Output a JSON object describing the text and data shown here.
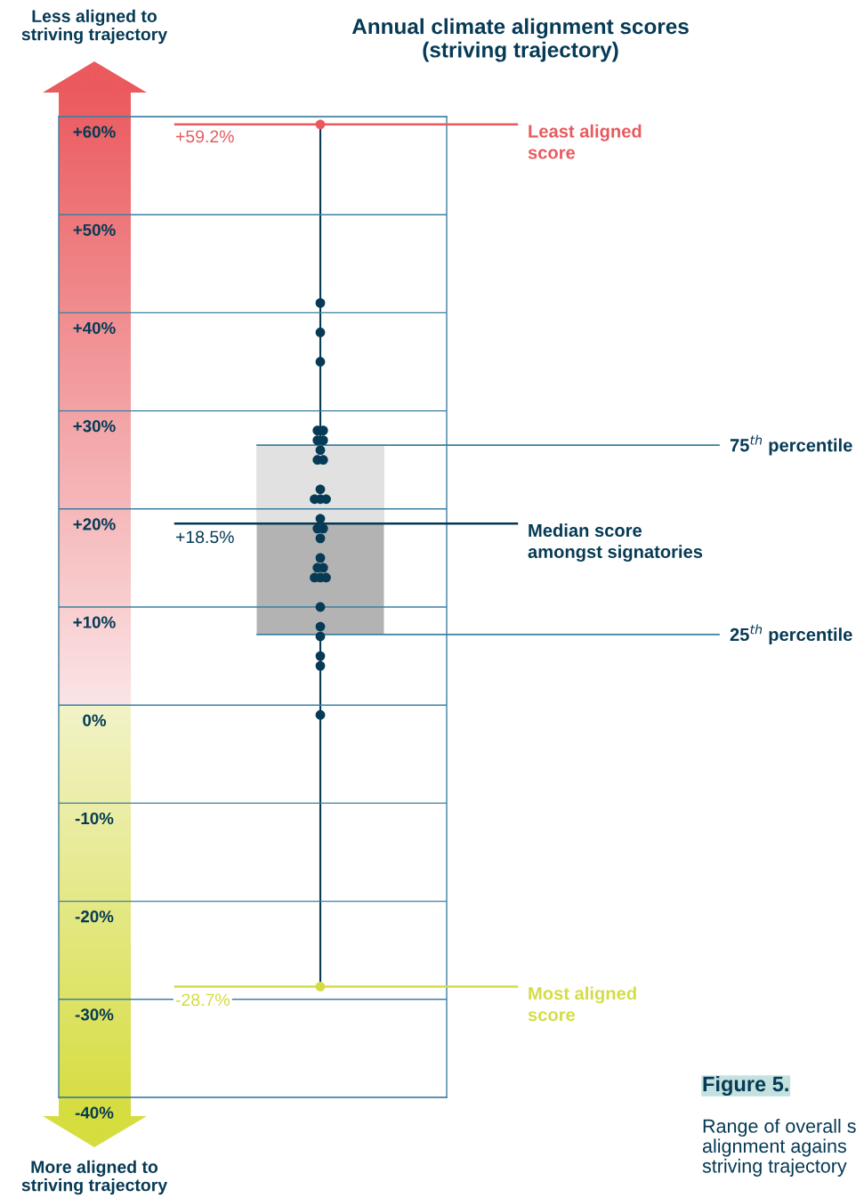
{
  "chart_data": {
    "type": "box",
    "title": "Annual climate alignment scores\n(striving trajectory)",
    "categories": [
      null
    ],
    "ylim": [
      -40,
      60
    ],
    "yticks": [
      {
        "value": 60,
        "label": "+60%"
      },
      {
        "value": 50,
        "label": "+50%"
      },
      {
        "value": 40,
        "label": "+40%"
      },
      {
        "value": 30,
        "label": "+30%"
      },
      {
        "value": 20,
        "label": "+20%"
      },
      {
        "value": 10,
        "label": "+10%"
      },
      {
        "value": 0,
        "label": "0%"
      },
      {
        "value": -10,
        "label": "-10%"
      },
      {
        "value": -20,
        "label": "-20%"
      },
      {
        "value": -30,
        "label": "-30%"
      },
      {
        "value": -40,
        "label": "-40%"
      }
    ],
    "grid": "y",
    "color": "#b3b3b3",
    "boxes": [
      {
        "low": -28.7,
        "q1": 7.2,
        "median": 18.5,
        "q3": 26.5,
        "high": 59.2
      }
    ],
    "series": [
      {
        "type": "scatter",
        "color": "#063a55",
        "x": [
          null,
          null,
          null,
          null,
          null,
          null,
          null,
          null,
          null,
          null,
          null,
          null,
          null,
          null,
          null,
          null,
          null,
          null,
          null,
          null,
          null,
          null,
          null,
          null,
          null,
          null,
          null,
          null,
          null,
          null
        ],
        "values": [
          41,
          38,
          35,
          28,
          28,
          27,
          27,
          26,
          25,
          25,
          22,
          21,
          21,
          21,
          19,
          18,
          18,
          17,
          15,
          14,
          14,
          13,
          13,
          13,
          10,
          8,
          7,
          5,
          4,
          -1
        ]
      },
      {
        "type": "scatter",
        "colors": [
          "#e85a5e",
          "#d4dc45"
        ],
        "x": [
          null,
          null
        ],
        "values": [
          59.2,
          -28.7
        ]
      }
    ],
    "ref_lines": [
      {
        "axis": "y",
        "value": 59.2,
        "label": "Least aligned\nscore",
        "color": "#e85a5e"
      },
      {
        "axis": "y",
        "value": 26.5,
        "label": "75$^{th}$ percentile",
        "color": "#3d7fa0"
      },
      {
        "axis": "y",
        "value": 18.5,
        "label": "Median score\namongst signatories",
        "color": "#063a55"
      },
      {
        "axis": "y",
        "value": 7.2,
        "label": "25$^{th}$ percentile",
        "color": "#3d7fa0"
      },
      {
        "axis": "y",
        "value": -28.7,
        "label": "Most aligned\nscore",
        "color": "#d4dc45"
      }
    ],
    "annotations": [
      "+59.2%",
      "+18.5%",
      "-28.7%",
      "Less aligned to\nstriving trajectory",
      "More aligned to\nstriving trajectory",
      "Figure 5.",
      "Range of overall s\nalignment agains\nstriving trajectory"
    ]
  }
}
